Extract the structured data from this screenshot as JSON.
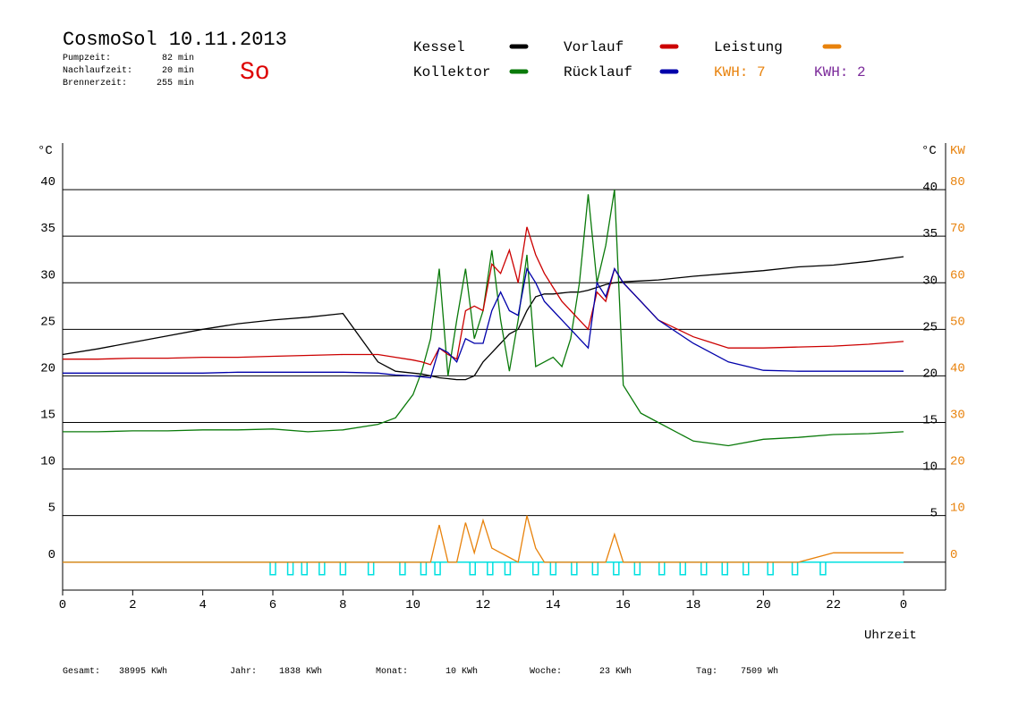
{
  "header": {
    "title": "CosmoSol 10.11.2013",
    "day": "So",
    "stats": [
      {
        "label": "Pumpzeit:",
        "value": "82 min"
      },
      {
        "label": "Nachlaufzeit:",
        "value": "20 min"
      },
      {
        "label": "Brennerzeit:",
        "value": "255 min"
      }
    ],
    "kwh": [
      {
        "text": "KWH: 7",
        "color": "#e8820c"
      },
      {
        "text": "KWH: 2",
        "color": "#7b2a9a"
      }
    ]
  },
  "footer": [
    {
      "label": "Gesamt:",
      "value": "38995 KWh"
    },
    {
      "label": "Jahr:",
      "value": "1838 KWh"
    },
    {
      "label": "Monat:",
      "value": "10 KWh"
    },
    {
      "label": "Woche:",
      "value": "23 KWh"
    },
    {
      "label": "Tag:",
      "value": "7509 Wh"
    }
  ],
  "chart_data": {
    "type": "line",
    "y_label": "°C",
    "y2_label": "°C",
    "y2_unit": "KW",
    "x_label": "Uhrzeit",
    "x": [
      0,
      1,
      2,
      3,
      4,
      5,
      6,
      7,
      8,
      9,
      9.5,
      10,
      10.25,
      10.5,
      10.75,
      11,
      11.25,
      11.5,
      11.75,
      12,
      12.25,
      12.5,
      12.75,
      13,
      13.25,
      13.5,
      13.75,
      14,
      14.25,
      14.5,
      14.75,
      15,
      15.25,
      15.5,
      15.75,
      16,
      16.5,
      17,
      18,
      19,
      20,
      21,
      22,
      23,
      24
    ],
    "xlim": [
      0,
      25.2
    ],
    "xticks": [
      0,
      2,
      4,
      6,
      8,
      10,
      12,
      14,
      16,
      18,
      20,
      22,
      {
        "value": 24,
        "label": "0"
      }
    ],
    "ylim": [
      -3,
      45
    ],
    "yticks": [
      0,
      5,
      10,
      15,
      20,
      25,
      30,
      35,
      40
    ],
    "y2lim": [
      -6,
      90
    ],
    "y2ticks": [
      0,
      10,
      20,
      30,
      40,
      50,
      60,
      70,
      80
    ],
    "grid": true,
    "series": [
      {
        "name": "Kessel",
        "color": "#000000",
        "values": [
          22.3,
          22.9,
          23.6,
          24.3,
          25,
          25.6,
          26,
          26.3,
          26.7,
          21.5,
          20.5,
          20.3,
          20.2,
          20,
          19.8,
          19.7,
          19.6,
          19.6,
          20,
          21.5,
          22.5,
          23.5,
          24.5,
          25,
          27,
          28.5,
          28.8,
          28.8,
          28.9,
          29,
          29,
          29.2,
          29.5,
          29.8,
          30,
          30.1,
          30.2,
          30.3,
          30.7,
          31,
          31.3,
          31.7,
          31.9,
          32.3,
          32.8
        ]
      },
      {
        "name": "Kollektor",
        "color": "#0a7a0a",
        "values": [
          14,
          14,
          14.1,
          14.1,
          14.2,
          14.2,
          14.3,
          14,
          14.2,
          14.8,
          15.5,
          18,
          20.5,
          24,
          31.5,
          20,
          26,
          31.5,
          24,
          27,
          33.5,
          26,
          20.5,
          26,
          33,
          21,
          21.5,
          22,
          21,
          24,
          30,
          39.5,
          30,
          34,
          40,
          19,
          16,
          15,
          13,
          12.5,
          13.2,
          13.4,
          13.7,
          13.8,
          14
        ]
      },
      {
        "name": "Vorlauf",
        "color": "#cc0000",
        "values": [
          21.8,
          21.8,
          21.9,
          21.9,
          22,
          22,
          22.1,
          22.2,
          22.3,
          22.3,
          22,
          21.7,
          21.5,
          21.2,
          23,
          22.3,
          21.8,
          27,
          27.5,
          27,
          32,
          31,
          33.5,
          30,
          36,
          33,
          31,
          29.5,
          28,
          27,
          26,
          25,
          29,
          28,
          31.5,
          30,
          28,
          26,
          24.2,
          23,
          23,
          23.1,
          23.2,
          23.4,
          23.7
        ]
      },
      {
        "name": "Rücklauf",
        "color": "#0000aa",
        "values": [
          20.3,
          20.3,
          20.3,
          20.3,
          20.3,
          20.4,
          20.4,
          20.4,
          20.4,
          20.3,
          20.1,
          20,
          19.9,
          19.8,
          23,
          22.5,
          21.5,
          24,
          23.5,
          23.5,
          27,
          29,
          27,
          26.5,
          31.5,
          30,
          28,
          27,
          26,
          25,
          24,
          23,
          30,
          28.5,
          31.5,
          30,
          28,
          26,
          23.5,
          21.5,
          20.6,
          20.5,
          20.5,
          20.5,
          20.5
        ]
      },
      {
        "name": "Leistung",
        "color": "#e8820c",
        "axis": "y2",
        "values": [
          0,
          0,
          0,
          0,
          0,
          0,
          0,
          0,
          0,
          0,
          0,
          0,
          0,
          0,
          8,
          0,
          0,
          8.5,
          2,
          9,
          3,
          2,
          1,
          0,
          10,
          3,
          0,
          0,
          0,
          0,
          0,
          0,
          0,
          0,
          6,
          0,
          0,
          0,
          0,
          0,
          0,
          0,
          2,
          2,
          2
        ]
      }
    ],
    "pump_color": "#00e0e0",
    "pump_markers": [
      6.0,
      6.5,
      6.9,
      7.4,
      8.0,
      8.8,
      9.7,
      10.3,
      10.7,
      11.7,
      12.2,
      12.7,
      13.5,
      14.0,
      14.6,
      15.2,
      15.8,
      16.4,
      17.1,
      17.7,
      18.3,
      18.9,
      19.5,
      20.2,
      20.9,
      21.7
    ]
  }
}
